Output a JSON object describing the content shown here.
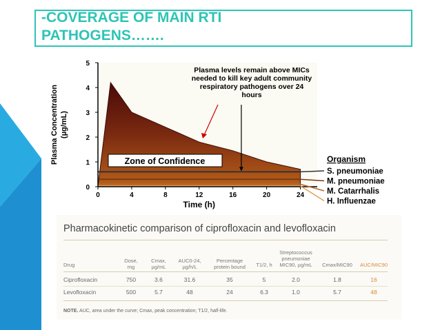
{
  "slide": {
    "title_line1": "-COVERAGE OF MAIN RTI",
    "title_line2": "PATHOGENS…….",
    "accent_color": "#2ec4b6",
    "decoration_color": "#29abe2"
  },
  "chart_data": {
    "type": "area",
    "x": [
      0,
      1.5,
      4,
      8,
      12,
      16,
      20,
      24
    ],
    "y": [
      0,
      4.2,
      3.0,
      2.4,
      1.8,
      1.45,
      1.0,
      0.7
    ],
    "xticks": [
      0,
      4,
      8,
      12,
      16,
      20,
      24
    ],
    "yticks": [
      0,
      1,
      2,
      3,
      4,
      5
    ],
    "xlim": [
      0,
      26
    ],
    "ylim": [
      0,
      5
    ],
    "xlabel": "Time (h)",
    "ylabel": "Plasma Concentration (µg/mL)",
    "annotation": "Plasma levels remain above MICs needed to kill key adult community respiratory pathogens over 24 hours",
    "zone_label": "Zone of Confidence",
    "legend_title": "Organism",
    "organisms": [
      {
        "name": "S. pneumoniae",
        "mic": 0.6,
        "color": "#333333"
      },
      {
        "name": "M. pneumoniae",
        "mic": 0.3,
        "color": "#7a3b10"
      },
      {
        "name": "M. Catarrhalis",
        "mic": 0.1,
        "color": "#b36a2a"
      },
      {
        "name": "H. Influenzae",
        "mic": 0.03,
        "color": "#e0a05a"
      }
    ],
    "fill_colors": [
      "#4a0a08",
      "#7a2a10",
      "#b8601a"
    ]
  },
  "table": {
    "title": "Pharmacokinetic comparison of ciprofloxacin and levofloxacin",
    "headers": {
      "drug": "Drug",
      "dose": "Dose,\nmg",
      "cmax": "Cmax,\nµg/mL",
      "auc": "AUC0-24,\nµg/h/L",
      "protein": "Percentage\nprotein bound",
      "thalf": "T1/2, h",
      "mic": "Streptococcus\npneumoniae\nMIC90, µg/mL",
      "cmax_mic": "Cmax/MIC90",
      "auc_mic": "AUC/MIC90"
    },
    "rows": [
      {
        "drug": "Ciprofloxacin",
        "dose": "750",
        "cmax": "3.6",
        "auc": "31.6",
        "protein": "35",
        "thalf": "5",
        "mic": "2.0",
        "cmax_mic": "1.8",
        "auc_mic": "16"
      },
      {
        "drug": "Levofloxacin",
        "dose": "500",
        "cmax": "5.7",
        "auc": "48",
        "protein": "24",
        "thalf": "6.3",
        "mic": "1.0",
        "cmax_mic": "5.7",
        "auc_mic": "48"
      }
    ],
    "note_label": "NOTE.",
    "note_text": "AUC, area under the curve; Cmax, peak concentration; T1/2, half-life.",
    "highlight_color": "#e0a05a"
  }
}
